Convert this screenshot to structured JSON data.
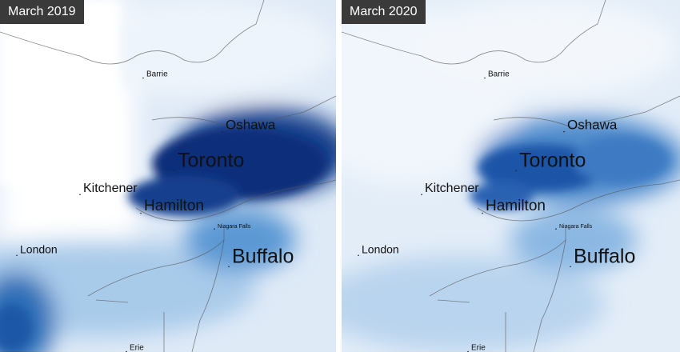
{
  "panels": [
    {
      "title": "March 2019",
      "places": [
        "Barrie",
        "Oshawa",
        "Toronto",
        "Kitchener",
        "Hamilton",
        "Niagara Falls",
        "London",
        "Buffalo",
        "Erie"
      ]
    },
    {
      "title": "March 2020",
      "places": [
        "Barrie",
        "Oshawa",
        "Toronto",
        "Kitchener",
        "Hamilton",
        "Niagara Falls",
        "London",
        "Buffalo",
        "Erie"
      ]
    }
  ]
}
